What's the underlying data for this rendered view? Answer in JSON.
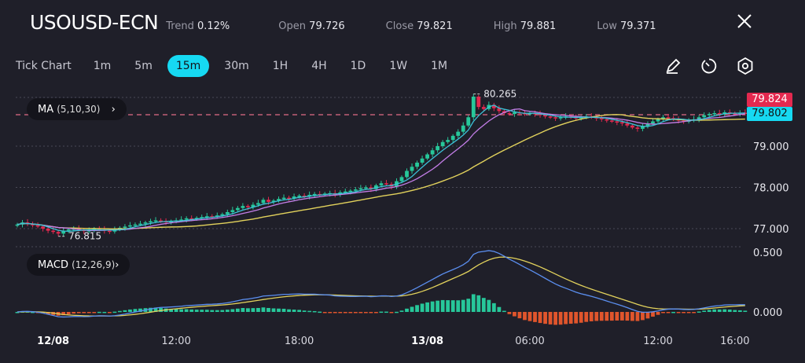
{
  "header": {
    "symbol": "USOUSD-ECN",
    "stats": [
      {
        "label": "Trend",
        "value": "0.12%"
      },
      {
        "label": "Open",
        "value": "79.726"
      },
      {
        "label": "Close",
        "value": "79.821"
      },
      {
        "label": "High",
        "value": "79.881"
      },
      {
        "label": "Low",
        "value": "79.371"
      }
    ],
    "close_icon": "close-icon"
  },
  "timeframes": {
    "items": [
      "Tick Chart",
      "1m",
      "5m",
      "15m",
      "30m",
      "1H",
      "4H",
      "1D",
      "1W",
      "1M"
    ],
    "selected": "15m"
  },
  "tools": [
    "pencil-icon",
    "timer-icon",
    "settings-hex-icon"
  ],
  "indicators": {
    "ma": {
      "name": "MA",
      "params": "(5,10,30)"
    },
    "macd": {
      "name": "MACD",
      "params": "(12,26,9)"
    }
  },
  "colors": {
    "background": "#1f1f29",
    "up": "#27c79a",
    "down": "#e3294f",
    "accent": "#16d9f2",
    "ma5": "#3cc3d8",
    "ma10": "#c47ee8",
    "ma30": "#e2d25c",
    "macd_line": "#5b8ff0",
    "signal_line": "#e2d25c"
  },
  "price_tags": {
    "ask": "79.824",
    "bid": "79.802"
  },
  "chart_data": {
    "type": "candlestick",
    "interval": "15m",
    "price_axis": {
      "ticks": [
        "79.000",
        "78.000",
        "77.000"
      ],
      "tick_values": [
        79,
        78,
        77
      ],
      "range": [
        76.6,
        80.45
      ]
    },
    "macd_axis": {
      "ticks": [
        "0.500",
        "0.000"
      ],
      "tick_values": [
        0.5,
        0
      ],
      "range": [
        -0.08,
        0.55
      ]
    },
    "time_labels": [
      "12/08",
      "12:00",
      "18:00",
      "13/08",
      "06:00",
      "12:00",
      "16:00"
    ],
    "time_label_candle_index": [
      7,
      31,
      55,
      80,
      100,
      125,
      140
    ],
    "annotations": {
      "high": "80.265",
      "low": "76.815",
      "high_value": 80.265,
      "low_value": 76.815
    },
    "closes": [
      77.1,
      77.15,
      77.12,
      77.08,
      77.05,
      77.0,
      76.95,
      76.92,
      76.88,
      76.95,
      76.98,
      77.0,
      76.97,
      76.94,
      76.96,
      77.0,
      76.98,
      76.95,
      76.93,
      76.98,
      77.02,
      77.05,
      77.08,
      77.1,
      77.12,
      77.15,
      77.18,
      77.2,
      77.18,
      77.16,
      77.18,
      77.2,
      77.22,
      77.25,
      77.24,
      77.26,
      77.28,
      77.3,
      77.29,
      77.32,
      77.35,
      77.4,
      77.45,
      77.5,
      77.55,
      77.52,
      77.58,
      77.62,
      77.7,
      77.65,
      77.68,
      77.72,
      77.75,
      77.74,
      77.78,
      77.8,
      77.78,
      77.82,
      77.84,
      77.83,
      77.85,
      77.86,
      77.82,
      77.88,
      77.9,
      77.92,
      77.95,
      77.98,
      78.0,
      77.96,
      78.05,
      78.1,
      78.08,
      78.02,
      78.15,
      78.25,
      78.4,
      78.5,
      78.6,
      78.7,
      78.8,
      78.9,
      79.0,
      79.1,
      79.15,
      79.25,
      79.35,
      79.5,
      79.7,
      80.2,
      79.95,
      79.9,
      80.0,
      79.92,
      79.85,
      79.8,
      79.78,
      79.82,
      79.8,
      79.78,
      79.8,
      79.78,
      79.75,
      79.72,
      79.7,
      79.68,
      79.7,
      79.72,
      79.7,
      79.68,
      79.7,
      79.72,
      79.7,
      79.68,
      79.65,
      79.62,
      79.6,
      79.58,
      79.55,
      79.5,
      79.45,
      79.42,
      79.48,
      79.55,
      79.6,
      79.65,
      79.7,
      79.68,
      79.65,
      79.62,
      79.6,
      79.62,
      79.65,
      79.7,
      79.75,
      79.78,
      79.8,
      79.78,
      79.82,
      79.8,
      79.79,
      79.81,
      79.802
    ]
  }
}
